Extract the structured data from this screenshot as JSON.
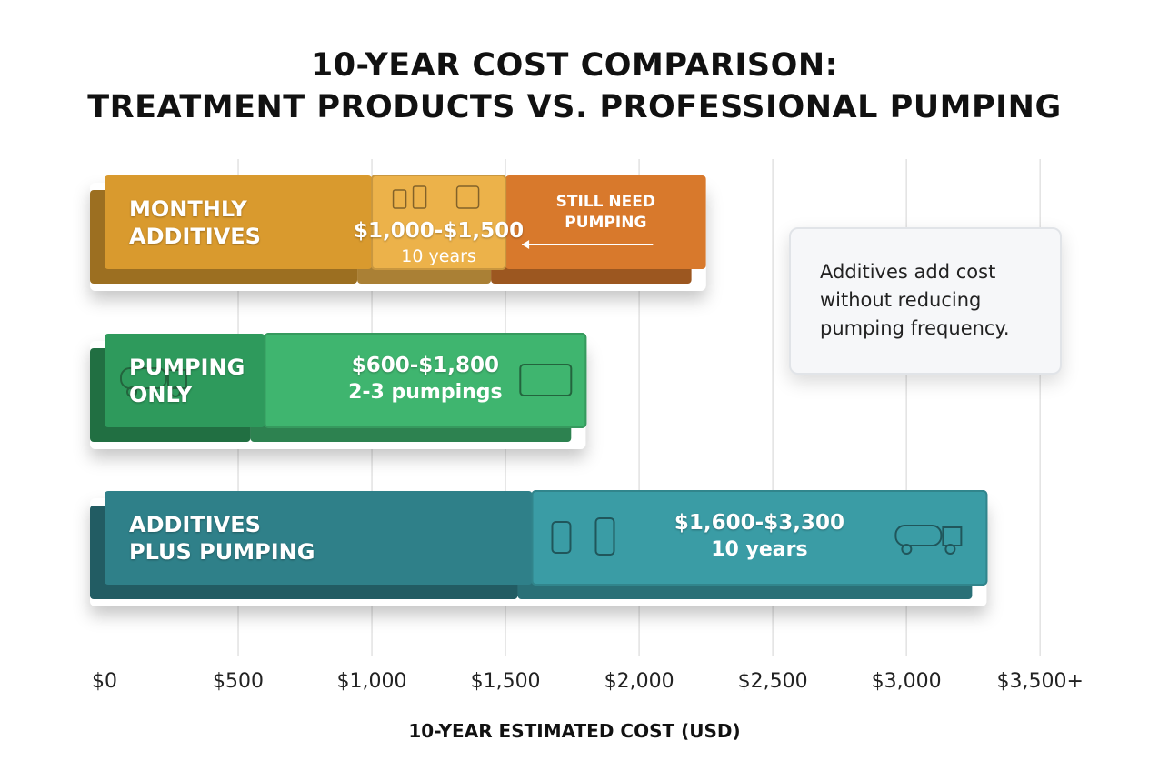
{
  "chart_data": {
    "type": "range-bar",
    "title": "10-YEAR COST COMPARISON:",
    "subtitle": "TREATMENT PRODUCTS VS. PROFESSIONAL PUMPING",
    "categories": [
      "MONTHLY ADDITIVES",
      "PUMPING ONLY",
      "ADDITIVES PLUS PUMPING"
    ],
    "low": [
      1000,
      600,
      1600
    ],
    "high": [
      1500,
      1800,
      3300
    ],
    "value_labels": [
      "$1,000-$1,500",
      "$600-$1,800",
      "$1,600-$3,300"
    ],
    "sublabels": [
      "10 years",
      "2-3 pumpings",
      "10 years"
    ],
    "base_colors": [
      "#d99a2e",
      "#2e9a5c",
      "#2f8089"
    ],
    "range_colors": [
      "#ecb24a",
      "#3fb56f",
      "#3a9ca5"
    ],
    "extension_end": [
      2250,
      null,
      null
    ],
    "extension_labels": [
      "STILL NEED PUMPING",
      null,
      null
    ],
    "extension_color": "#d8792c",
    "xlim": [
      0,
      3700
    ],
    "xticks": [
      {
        "value": 0,
        "label": "$0"
      },
      {
        "value": 500,
        "label": "$500"
      },
      {
        "value": 1000,
        "label": "$1,000"
      },
      {
        "value": 1500,
        "label": "$1,500"
      },
      {
        "value": 2000,
        "label": "$2,000"
      },
      {
        "value": 2500,
        "label": "$2,500"
      },
      {
        "value": 3000,
        "label": "$3,000"
      },
      {
        "value": 3500,
        "label": "$3,500+"
      }
    ],
    "xlabel": "10-YEAR ESTIMATED COST (USD)",
    "grid": true,
    "note": "Additives add cost without reducing pumping frequency."
  }
}
